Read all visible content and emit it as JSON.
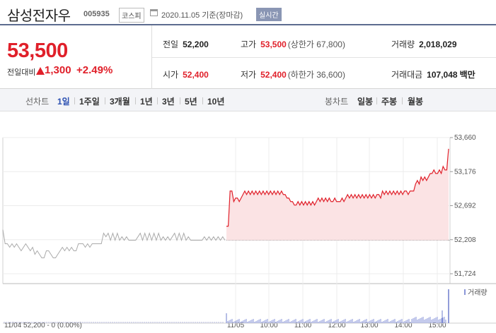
{
  "header": {
    "stock_name": "삼성전자우",
    "stock_code": "005935",
    "market": "코스피",
    "base_date": "2020.11.05 기준(장마감)",
    "realtime_badge": "실시간"
  },
  "summary": {
    "price": "53,500",
    "change_label": "전일대비",
    "change_value": "1,300",
    "change_percent": "+2.49%",
    "stats": {
      "prev_close_label": "전일",
      "prev_close": "52,200",
      "high_label": "고가",
      "high": "53,500",
      "upper_limit": "(상한가 67,800)",
      "volume_label": "거래량",
      "volume": "2,018,029",
      "open_label": "시가",
      "open": "52,400",
      "low_label": "저가",
      "low": "52,400",
      "lower_limit": "(하한가 36,600)",
      "trade_value_label": "거래대금",
      "trade_value": "107,048",
      "trade_value_unit": "백만"
    }
  },
  "toolbar": {
    "line_chart_label": "선차트",
    "periods": [
      "1일",
      "1주일",
      "3개월",
      "1년",
      "3년",
      "5년",
      "10년"
    ],
    "candle_chart_label": "봉차트",
    "candle_periods": [
      "일봉",
      "주봉",
      "월봉"
    ]
  },
  "colors": {
    "up": "#e0202a",
    "accent": "#2a4fb1",
    "prev_line": "#aaaaaa"
  },
  "chart_data": {
    "type": "line",
    "y_ticks": [
      "53,660",
      "53,176",
      "52,692",
      "52,208",
      "51,724"
    ],
    "ylim": [
      51724,
      53660
    ],
    "reference_price": 52200,
    "x_ticks": [
      "11/05",
      "10:00",
      "11:00",
      "12:00",
      "13:00",
      "14:00",
      "15:00"
    ],
    "prev_day_label": "11/04 52,200 - 0 (0.00%)",
    "volume_label": "거래량",
    "prev_day": [
      52350,
      52150,
      52150,
      52100,
      52150,
      52100,
      52150,
      52100,
      52050,
      52100,
      52150,
      52100,
      52050,
      52100,
      52000,
      52050,
      52000,
      51950,
      51950,
      52050,
      52050,
      52000,
      51950,
      51950,
      52000,
      52050,
      52100,
      52050,
      52100,
      52050,
      52100,
      52050,
      52050,
      52150,
      52150,
      52150,
      52100,
      52150,
      52100,
      52150,
      52150,
      52150,
      52150,
      52150,
      52300,
      52250,
      52300,
      52200,
      52300,
      52200,
      52300,
      52200,
      52250,
      52200,
      52250,
      52200,
      52200,
      52200,
      52200,
      52250,
      52300,
      52200,
      52300,
      52200,
      52300,
      52200,
      52300,
      52200,
      52300,
      52200,
      52250,
      52200,
      52250,
      52200,
      52250,
      52300,
      52200,
      52300,
      52200,
      52300,
      52200,
      52250,
      52200,
      52200,
      52200,
      52200,
      52200,
      52200,
      52250,
      52200,
      52250,
      52200,
      52250,
      52200,
      52250,
      52200,
      52250,
      52200
    ],
    "today": [
      52400,
      52400,
      52900,
      52900,
      52750,
      52800,
      52800,
      52750,
      52800,
      52850,
      52900,
      52850,
      52900,
      52850,
      52900,
      52850,
      52900,
      52850,
      52900,
      52850,
      52900,
      52850,
      52900,
      52850,
      52900,
      52850,
      52900,
      52850,
      52900,
      52850,
      52900,
      52850,
      52850,
      52800,
      52800,
      52750,
      52750,
      52700,
      52700,
      52750,
      52700,
      52750,
      52700,
      52750,
      52700,
      52750,
      52700,
      52750,
      52700,
      52750,
      52800,
      52750,
      52800,
      52750,
      52800,
      52750,
      52800,
      52750,
      52750,
      52800,
      52750,
      52750,
      52750,
      52800,
      52750,
      52800,
      52850,
      52800,
      52850,
      52800,
      52850,
      52800,
      52850,
      52800,
      52850,
      52800,
      52850,
      52800,
      52850,
      52800,
      52850,
      52800,
      52850,
      52850,
      52800,
      52900,
      52850,
      52900,
      52850,
      52900,
      52850,
      52900,
      52850,
      52900,
      52850,
      52900,
      52850,
      52900,
      52900,
      52850,
      52900,
      52900,
      52900,
      53000,
      53050,
      53000,
      53100,
      53050,
      53100,
      53050,
      53100,
      53150,
      53150,
      53200,
      53150,
      53150,
      53200,
      53150,
      53250,
      53200,
      53200,
      53500
    ]
  }
}
